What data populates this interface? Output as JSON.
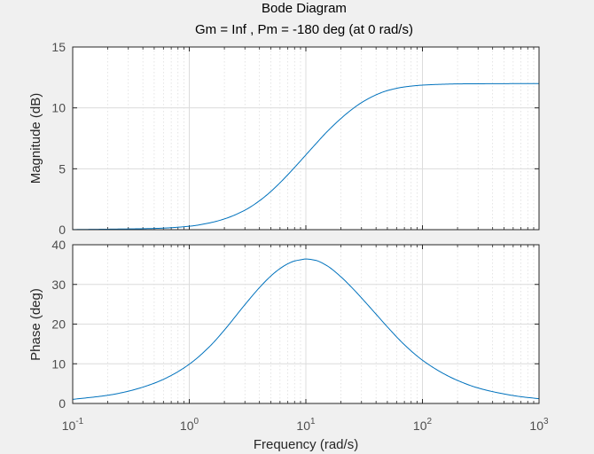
{
  "chart_data": {
    "type": "line",
    "title": "Bode Diagram",
    "subtitle": "Gm = Inf ,  Pm = -180 deg (at 0 rad/s)",
    "xlabel": "Frequency  (rad/s)",
    "x_scale": "log",
    "xlim": [
      0.1,
      1000
    ],
    "x_ticks": [
      {
        "value": 0.1,
        "base": "10",
        "exp": "-1"
      },
      {
        "value": 1,
        "base": "10",
        "exp": "0"
      },
      {
        "value": 10,
        "base": "10",
        "exp": "1"
      },
      {
        "value": 100,
        "base": "10",
        "exp": "2"
      },
      {
        "value": 1000,
        "base": "10",
        "exp": "3"
      }
    ],
    "grid": true,
    "line_color": "#0072bd",
    "panels": [
      {
        "name": "magnitude",
        "ylabel": "Magnitude (dB)",
        "ylim": [
          0,
          15
        ],
        "y_ticks": [
          {
            "value": 0,
            "label": "0"
          },
          {
            "value": 5,
            "label": "5"
          },
          {
            "value": 10,
            "label": "10"
          },
          {
            "value": 15,
            "label": "15"
          }
        ],
        "x": [
          0.1,
          0.2,
          0.5,
          1,
          1.5,
          2,
          3,
          4,
          5,
          6,
          7,
          8,
          9,
          10,
          12,
          15,
          20,
          25,
          30,
          40,
          50,
          70,
          100,
          150,
          200,
          300,
          500,
          1000
        ],
        "y": [
          0.01,
          0.04,
          0.1,
          0.28,
          0.56,
          0.88,
          1.6,
          2.37,
          3.13,
          3.85,
          4.51,
          5.11,
          5.65,
          6.14,
          6.98,
          7.99,
          9.13,
          9.9,
          10.43,
          11.07,
          11.42,
          11.72,
          11.87,
          11.94,
          11.97,
          11.98,
          11.99,
          12.0
        ]
      },
      {
        "name": "phase",
        "ylabel": "Phase (deg)",
        "ylim": [
          0,
          40
        ],
        "y_ticks": [
          {
            "value": 0,
            "label": "0"
          },
          {
            "value": 10,
            "label": "10"
          },
          {
            "value": 20,
            "label": "20"
          },
          {
            "value": 30,
            "label": "30"
          },
          {
            "value": 40,
            "label": "40"
          }
        ],
        "x": [
          0.1,
          0.2,
          0.3,
          0.5,
          0.7,
          1,
          1.5,
          2,
          3,
          4,
          5,
          6,
          7,
          8,
          9,
          10,
          12,
          15,
          20,
          25,
          30,
          40,
          50,
          70,
          100,
          150,
          200,
          300,
          500,
          700,
          1000
        ],
        "y": [
          1.03,
          2.06,
          3.09,
          5.1,
          7.06,
          9.89,
          14.4,
          18.5,
          24.9,
          29.2,
          32.1,
          34.0,
          35.2,
          35.9,
          36.2,
          36.4,
          36.1,
          34.8,
          31.9,
          29.1,
          26.6,
          22.5,
          19.3,
          14.8,
          10.9,
          7.6,
          5.8,
          3.9,
          2.4,
          1.7,
          1.2
        ]
      }
    ]
  }
}
